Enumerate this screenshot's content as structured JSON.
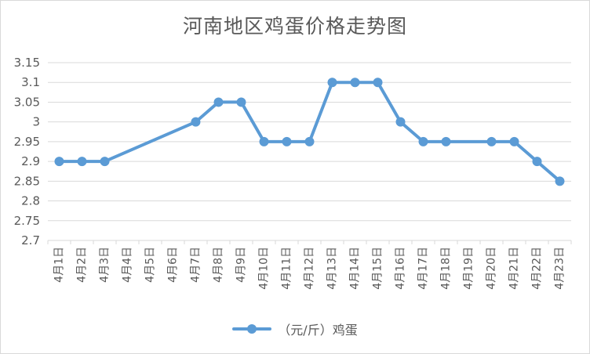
{
  "chart_data": {
    "type": "line",
    "title": "河南地区鸡蛋价格走势图",
    "xlabel": "",
    "ylabel": "",
    "categories": [
      "4月1日",
      "4月2日",
      "4月3日",
      "4月4日",
      "4月5日",
      "4月6日",
      "4月7日",
      "4月8日",
      "4月9日",
      "4月10日",
      "4月11日",
      "4月12日",
      "4月13日",
      "4月14日",
      "4月15日",
      "4月16日",
      "4月17日",
      "4月18日",
      "4月19日",
      "4月20日",
      "4月21日",
      "4月22日",
      "4月23日"
    ],
    "series": [
      {
        "name": "（元/斤）鸡蛋",
        "color": "#5b9bd5",
        "values": [
          2.9,
          2.9,
          2.9,
          null,
          null,
          null,
          3.0,
          3.05,
          3.05,
          2.95,
          2.95,
          2.95,
          3.1,
          3.1,
          3.1,
          3.0,
          2.95,
          2.95,
          null,
          2.95,
          2.95,
          2.9,
          2.85
        ]
      }
    ],
    "ylim": [
      2.7,
      3.15
    ],
    "yticks": [
      "2.7",
      "2.75",
      "2.8",
      "2.85",
      "2.9",
      "2.95",
      "3",
      "3.05",
      "3.1",
      "3.15"
    ],
    "grid": true,
    "legend_position": "bottom"
  }
}
